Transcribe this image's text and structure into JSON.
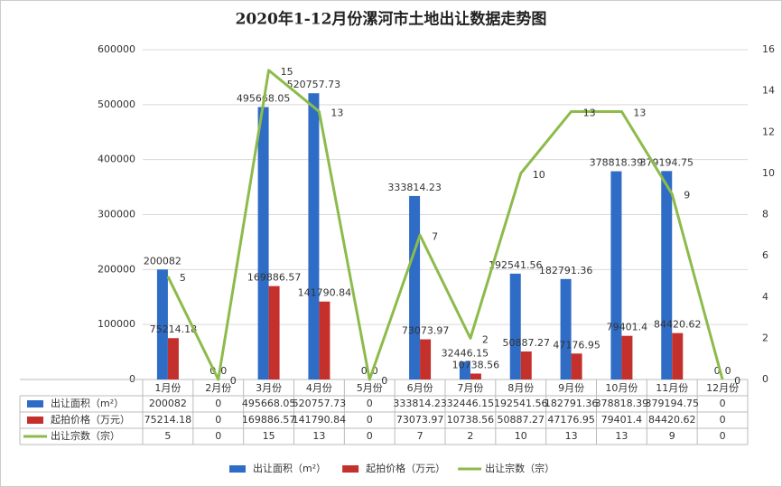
{
  "chart_data": {
    "type": "bar-line-table",
    "title": "2020年1-12月份漯河市土地出让数据走势图",
    "categories": [
      "1月份",
      "2月份",
      "3月份",
      "4月份",
      "5月份",
      "6月份",
      "7月份",
      "8月份",
      "9月份",
      "10月份",
      "11月份",
      "12月份"
    ],
    "series": [
      {
        "name": "出让面积（m²）",
        "type": "bar",
        "color": "#2f6cc6",
        "values": [
          200082,
          0,
          495668.05,
          520757.73,
          0,
          333814.23,
          32446.15,
          192541.56,
          182791.36,
          378818.39,
          379194.75,
          0
        ]
      },
      {
        "name": "起拍价格（万元）",
        "type": "bar",
        "color": "#c4302b",
        "values": [
          75214.18,
          0,
          169886.57,
          141790.84,
          0,
          73073.97,
          10738.56,
          50887.27,
          47176.95,
          79401.4,
          84420.62,
          0
        ]
      },
      {
        "name": "出让宗数（宗）",
        "type": "line",
        "axis": "y2",
        "color": "#8dbb4b",
        "values": [
          5,
          0,
          15,
          13,
          0,
          7,
          2,
          10,
          13,
          13,
          9,
          0
        ]
      }
    ],
    "ylim": [
      0,
      600000
    ],
    "yticks": [
      0,
      100000,
      200000,
      300000,
      400000,
      500000,
      600000
    ],
    "y2lim": [
      0,
      16
    ],
    "y2ticks": [
      0,
      2,
      4,
      6,
      8,
      10,
      12,
      14,
      16
    ],
    "grid": true
  }
}
